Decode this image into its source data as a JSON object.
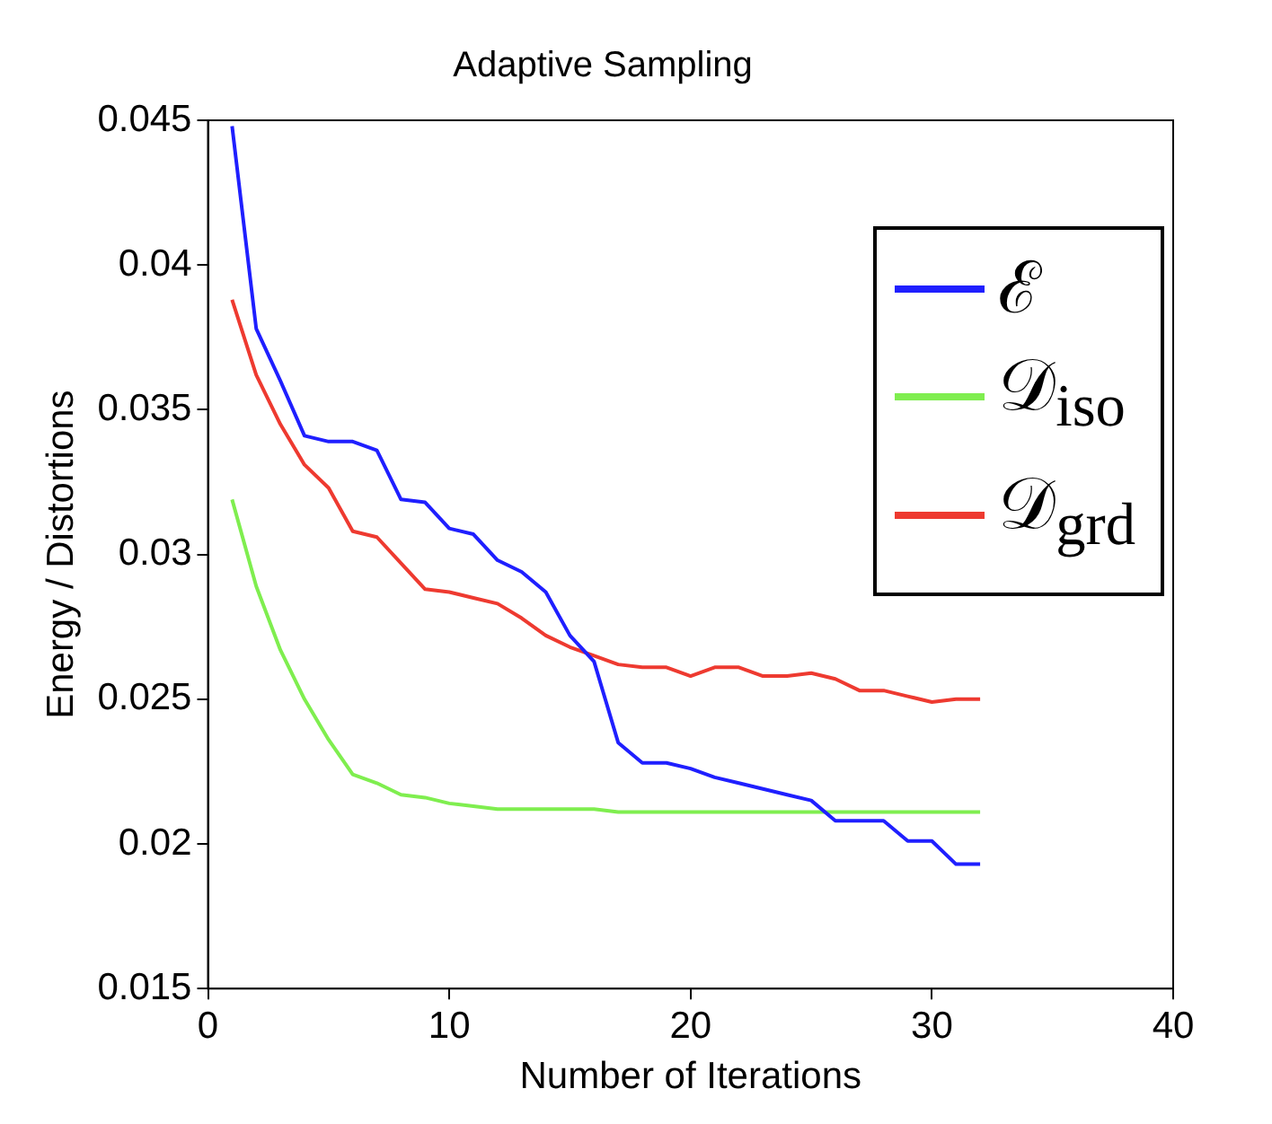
{
  "chart_data": {
    "type": "line",
    "title": "Adaptive Sampling",
    "xlabel": "Number of Iterations",
    "ylabel": "Energy / Distortions",
    "x": [
      1,
      2,
      3,
      4,
      5,
      6,
      7,
      8,
      9,
      10,
      11,
      12,
      13,
      14,
      15,
      16,
      17,
      18,
      19,
      20,
      21,
      22,
      23,
      24,
      25,
      26,
      27,
      28,
      29,
      30,
      31,
      32
    ],
    "series": [
      {
        "name": "ℰ",
        "color": "#1f1fff",
        "values": [
          0.0448,
          0.0378,
          0.036,
          0.0341,
          0.0339,
          0.0339,
          0.0336,
          0.0319,
          0.0318,
          0.0309,
          0.0307,
          0.0298,
          0.0294,
          0.0287,
          0.0272,
          0.0263,
          0.0235,
          0.0228,
          0.0228,
          0.0226,
          0.0223,
          0.0221,
          0.0219,
          0.0217,
          0.0215,
          0.0208,
          0.0208,
          0.0208,
          0.0201,
          0.0201,
          0.0193,
          0.0193
        ]
      },
      {
        "name": "𝒟$_{iso}$",
        "color": "#7fee4f",
        "values": [
          0.0319,
          0.0289,
          0.0267,
          0.025,
          0.0236,
          0.0224,
          0.0221,
          0.0217,
          0.0216,
          0.0214,
          0.0213,
          0.0212,
          0.0212,
          0.0212,
          0.0212,
          0.0212,
          0.0211,
          0.0211,
          0.0211,
          0.0211,
          0.0211,
          0.0211,
          0.0211,
          0.0211,
          0.0211,
          0.0211,
          0.0211,
          0.0211,
          0.0211,
          0.0211,
          0.0211,
          0.0211
        ]
      },
      {
        "name": "𝒟$_{grd}$",
        "color": "#ee3a30",
        "values": [
          0.0388,
          0.0362,
          0.0345,
          0.0331,
          0.0323,
          0.0308,
          0.0306,
          0.0297,
          0.0288,
          0.0287,
          0.0285,
          0.0283,
          0.0278,
          0.0272,
          0.0268,
          0.0265,
          0.0262,
          0.0261,
          0.0261,
          0.0258,
          0.0261,
          0.0261,
          0.0258,
          0.0258,
          0.0259,
          0.0257,
          0.0253,
          0.0253,
          0.0251,
          0.0249,
          0.025,
          0.025
        ]
      }
    ],
    "xlim": [
      0,
      40
    ],
    "xticks": [
      0,
      10,
      20,
      30,
      40
    ],
    "ylim": [
      0.015,
      0.045
    ],
    "yticks": [
      {
        "value": 0.015,
        "label": "0.015"
      },
      {
        "value": 0.02,
        "label": "0.02"
      },
      {
        "value": 0.025,
        "label": "0.025"
      },
      {
        "value": 0.03,
        "label": "0.03"
      },
      {
        "value": 0.035,
        "label": "0.035"
      },
      {
        "value": 0.04,
        "label": "0.04"
      },
      {
        "value": 0.045,
        "label": "0.045"
      }
    ],
    "legend": "top right",
    "marker": "none",
    "line_style": "solid",
    "grid": false
  }
}
